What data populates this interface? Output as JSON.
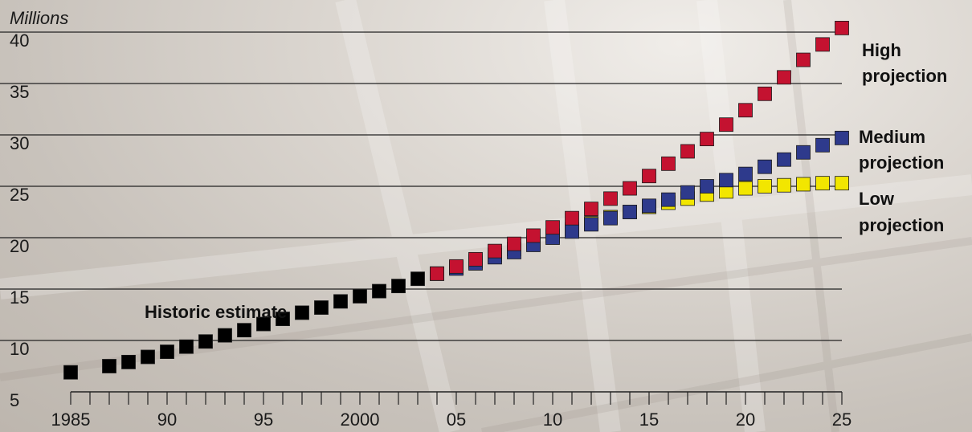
{
  "chart_data": {
    "type": "scatter",
    "y_unit_label": "Millions",
    "ylim": [
      5,
      40
    ],
    "y_ticks": [
      5,
      10,
      15,
      20,
      25,
      30,
      35,
      40
    ],
    "y_tick_labels": [
      "5",
      "10",
      "15",
      "20",
      "25",
      "30",
      "35",
      "40"
    ],
    "xlim": [
      1985,
      2025
    ],
    "x_tick_labels": [
      {
        "year": 1985,
        "label": "1985"
      },
      {
        "year": 1990,
        "label": "90"
      },
      {
        "year": 1995,
        "label": "95"
      },
      {
        "year": 2000,
        "label": "2000"
      },
      {
        "year": 2005,
        "label": "05"
      },
      {
        "year": 2010,
        "label": "10"
      },
      {
        "year": 2015,
        "label": "15"
      },
      {
        "year": 2020,
        "label": "20"
      },
      {
        "year": 2025,
        "label": "25"
      }
    ],
    "grid": true,
    "colors": {
      "historic": "#000000",
      "low": "#f2e600",
      "medium": "#2e3a8c",
      "high": "#c41230"
    },
    "series": [
      {
        "key": "historic",
        "name": "Historic estimate",
        "x": [
          1985,
          1987,
          1988,
          1989,
          1990,
          1991,
          1992,
          1993,
          1994,
          1995,
          1996,
          1997,
          1998,
          1999,
          2000,
          2001,
          2002,
          2003
        ],
        "y": [
          6.9,
          7.5,
          7.9,
          8.4,
          8.9,
          9.4,
          9.9,
          10.5,
          11.0,
          11.6,
          12.1,
          12.7,
          13.2,
          13.8,
          14.3,
          14.8,
          15.3,
          16.0
        ]
      },
      {
        "key": "low",
        "name": "Low projection",
        "x": [
          2004,
          2005,
          2006,
          2007,
          2008,
          2009,
          2010,
          2011,
          2012,
          2013,
          2014,
          2015,
          2016,
          2017,
          2018,
          2019,
          2020,
          2021,
          2022,
          2023,
          2024,
          2025
        ],
        "y": [
          16.5,
          17.1,
          17.7,
          18.3,
          18.9,
          19.5,
          20.2,
          20.8,
          21.4,
          22.0,
          22.5,
          23.0,
          23.4,
          23.8,
          24.2,
          24.5,
          24.8,
          25.0,
          25.1,
          25.2,
          25.3,
          25.3
        ]
      },
      {
        "key": "medium",
        "name": "Medium projection",
        "x": [
          2004,
          2005,
          2006,
          2007,
          2008,
          2009,
          2010,
          2011,
          2012,
          2013,
          2014,
          2015,
          2016,
          2017,
          2018,
          2019,
          2020,
          2021,
          2022,
          2023,
          2024,
          2025
        ],
        "y": [
          16.5,
          17.0,
          17.5,
          18.1,
          18.6,
          19.3,
          20.0,
          20.6,
          21.3,
          21.9,
          22.5,
          23.1,
          23.7,
          24.4,
          25.0,
          25.6,
          26.2,
          26.9,
          27.6,
          28.3,
          29.0,
          29.7
        ]
      },
      {
        "key": "high",
        "name": "High projection",
        "x": [
          2004,
          2005,
          2006,
          2007,
          2008,
          2009,
          2010,
          2011,
          2012,
          2013,
          2014,
          2015,
          2016,
          2017,
          2018,
          2019,
          2020,
          2021,
          2022,
          2023,
          2024,
          2025
        ],
        "y": [
          16.5,
          17.2,
          17.9,
          18.7,
          19.4,
          20.2,
          21.0,
          21.9,
          22.8,
          23.8,
          24.8,
          26.0,
          27.2,
          28.4,
          29.6,
          31.0,
          32.4,
          34.0,
          35.6,
          37.3,
          38.8,
          40.4
        ]
      }
    ],
    "annotations": {
      "historic": "Historic estimate",
      "high": [
        "High",
        "projection"
      ],
      "medium": [
        "Medium",
        "projection"
      ],
      "low": [
        "Low",
        "projection"
      ]
    }
  }
}
